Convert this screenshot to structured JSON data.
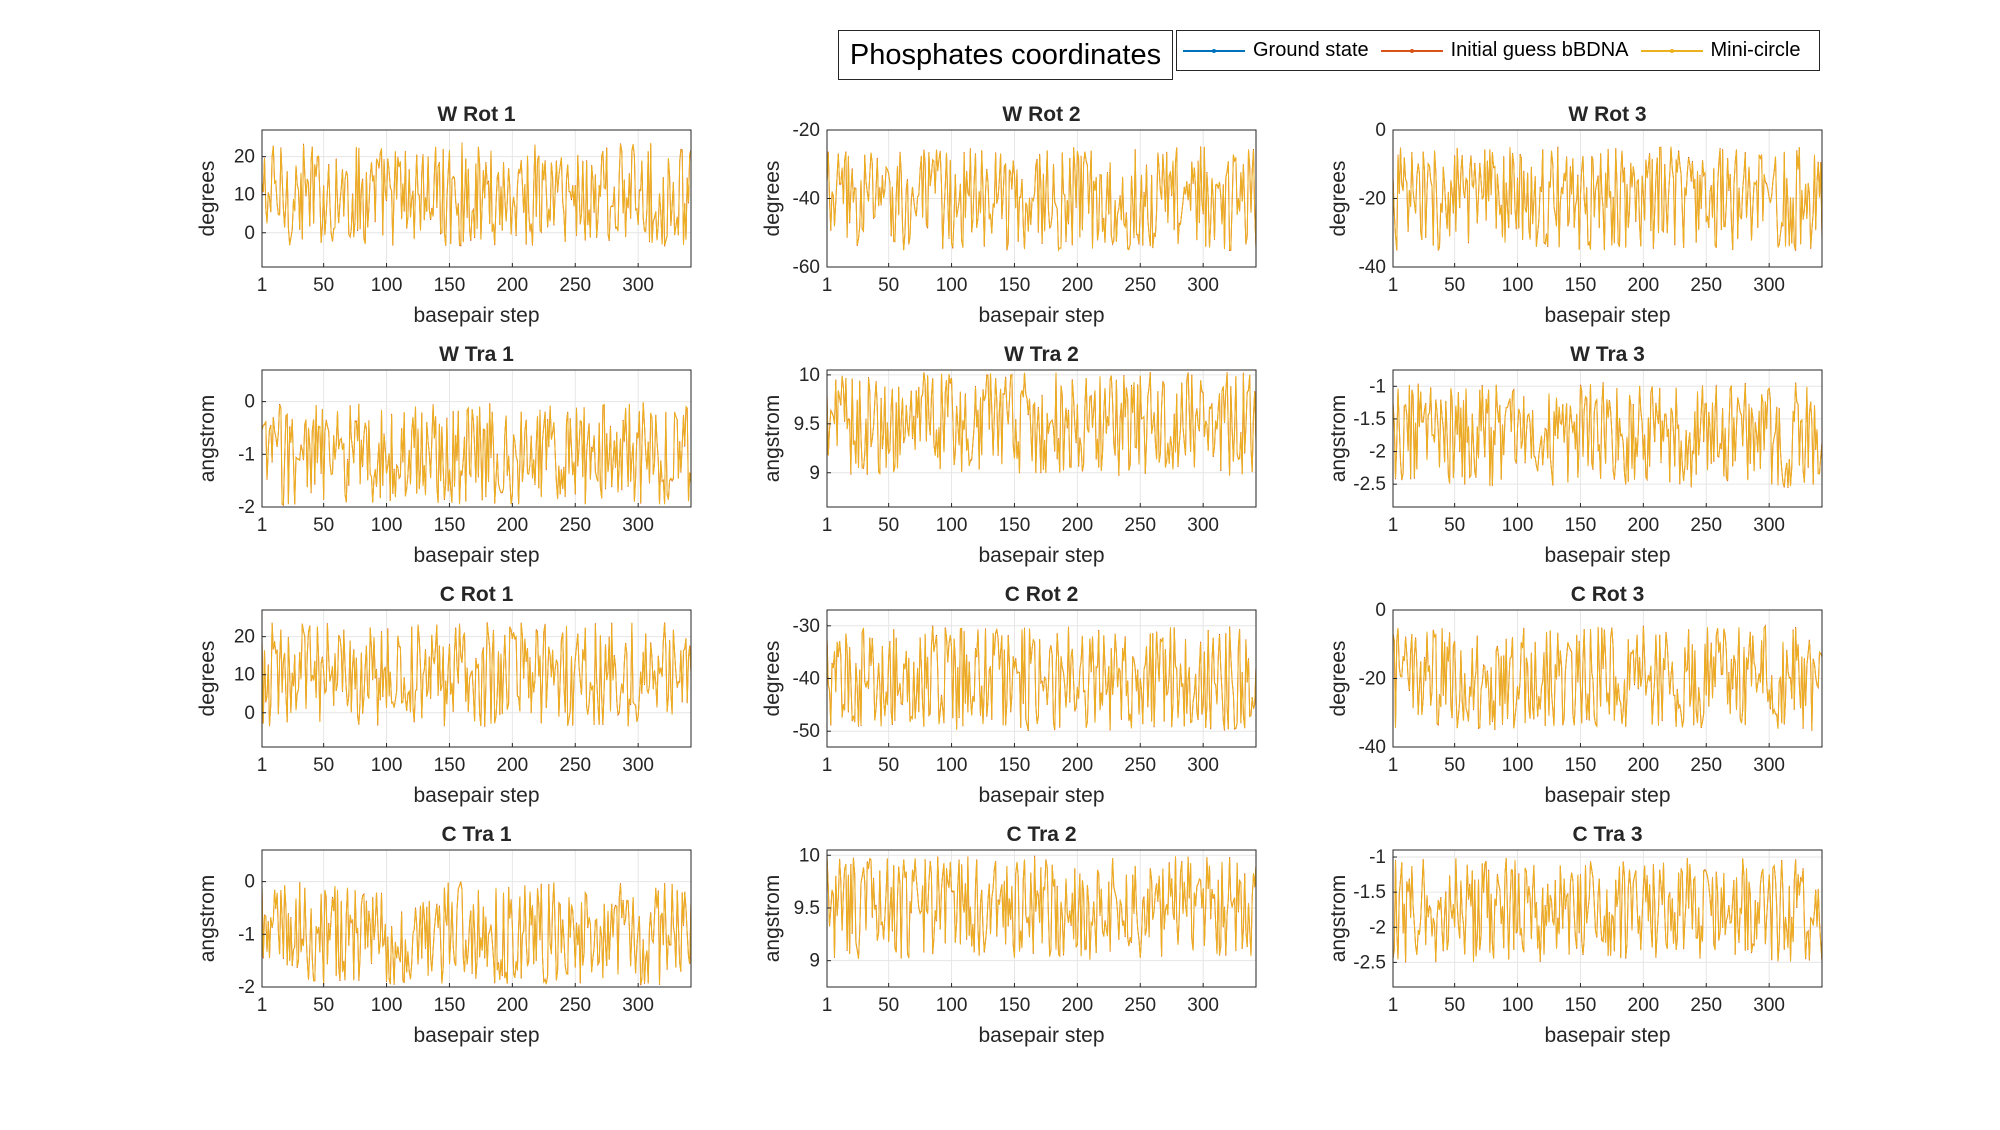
{
  "figure_title": "Phosphates coordinates",
  "legend": [
    {
      "label": "Ground state",
      "color": "#0072BD"
    },
    {
      "label": "Initial guess bBDNA",
      "color": "#D95319"
    },
    {
      "label": "Mini-circle",
      "color": "#EDB120"
    }
  ],
  "chart_data": [
    {
      "type": "line",
      "title": "W Rot 1",
      "xlabel": "basepair step",
      "ylabel": "degrees",
      "xlim": [
        1,
        342
      ],
      "xticks": [
        1,
        50,
        100,
        150,
        200,
        250,
        300
      ],
      "ylim": [
        -9,
        27
      ],
      "yticks": [
        0,
        10,
        20
      ],
      "series": [
        {
          "name": "Ground state",
          "values": []
        },
        {
          "name": "Initial guess bBDNA",
          "values": []
        },
        {
          "name": "Mini-circle",
          "values": []
        }
      ]
    },
    {
      "type": "line",
      "title": "W Rot 2",
      "xlabel": "basepair step",
      "ylabel": "degrees",
      "xlim": [
        1,
        342
      ],
      "xticks": [
        1,
        50,
        100,
        150,
        200,
        250,
        300
      ],
      "ylim": [
        -60,
        -20
      ],
      "yticks": [
        -60,
        -40,
        -20
      ],
      "series": [
        {
          "name": "Ground state",
          "values": []
        },
        {
          "name": "Initial guess bBDNA",
          "values": []
        },
        {
          "name": "Mini-circle",
          "values": []
        }
      ]
    },
    {
      "type": "line",
      "title": "W Rot 3",
      "xlabel": "basepair step",
      "ylabel": "degrees",
      "xlim": [
        1,
        342
      ],
      "xticks": [
        1,
        50,
        100,
        150,
        200,
        250,
        300
      ],
      "ylim": [
        -40,
        0
      ],
      "yticks": [
        -40,
        -20,
        0
      ],
      "series": [
        {
          "name": "Ground state",
          "values": []
        },
        {
          "name": "Initial guess bBDNA",
          "values": []
        },
        {
          "name": "Mini-circle",
          "values": []
        }
      ]
    },
    {
      "type": "line",
      "title": "W Tra 1",
      "xlabel": "basepair step",
      "ylabel": "angstrom",
      "xlim": [
        1,
        342
      ],
      "xticks": [
        1,
        50,
        100,
        150,
        200,
        250,
        300
      ],
      "ylim": [
        -2,
        0.6
      ],
      "yticks": [
        -2,
        -1,
        0
      ],
      "series": [
        {
          "name": "Ground state",
          "values": []
        },
        {
          "name": "Initial guess bBDNA",
          "values": []
        },
        {
          "name": "Mini-circle",
          "values": []
        }
      ]
    },
    {
      "type": "line",
      "title": "W Tra 2",
      "xlabel": "basepair step",
      "ylabel": "angstrom",
      "xlim": [
        1,
        342
      ],
      "xticks": [
        1,
        50,
        100,
        150,
        200,
        250,
        300
      ],
      "ylim": [
        8.65,
        10.05
      ],
      "yticks": [
        9,
        9.5,
        10
      ],
      "series": [
        {
          "name": "Ground state",
          "values": []
        },
        {
          "name": "Initial guess bBDNA",
          "values": []
        },
        {
          "name": "Mini-circle",
          "values": []
        }
      ]
    },
    {
      "type": "line",
      "title": "W Tra 3",
      "xlabel": "basepair step",
      "ylabel": "angstrom",
      "xlim": [
        1,
        342
      ],
      "xticks": [
        1,
        50,
        100,
        150,
        200,
        250,
        300
      ],
      "ylim": [
        -2.85,
        -0.75
      ],
      "yticks": [
        -2.5,
        -2,
        -1.5,
        -1
      ],
      "series": [
        {
          "name": "Ground state",
          "values": []
        },
        {
          "name": "Initial guess bBDNA",
          "values": []
        },
        {
          "name": "Mini-circle",
          "values": []
        }
      ]
    },
    {
      "type": "line",
      "title": "C Rot 1",
      "xlabel": "basepair step",
      "ylabel": "degrees",
      "xlim": [
        1,
        342
      ],
      "xticks": [
        1,
        50,
        100,
        150,
        200,
        250,
        300
      ],
      "ylim": [
        -9,
        27
      ],
      "yticks": [
        0,
        10,
        20
      ],
      "series": [
        {
          "name": "Ground state",
          "values": []
        },
        {
          "name": "Initial guess bBDNA",
          "values": []
        },
        {
          "name": "Mini-circle",
          "values": []
        }
      ]
    },
    {
      "type": "line",
      "title": "C Rot 2",
      "xlabel": "basepair step",
      "ylabel": "degrees",
      "xlim": [
        1,
        342
      ],
      "xticks": [
        1,
        50,
        100,
        150,
        200,
        250,
        300
      ],
      "ylim": [
        -53,
        -27
      ],
      "yticks": [
        -50,
        -40,
        -30
      ],
      "series": [
        {
          "name": "Ground state",
          "values": []
        },
        {
          "name": "Initial guess bBDNA",
          "values": []
        },
        {
          "name": "Mini-circle",
          "values": []
        }
      ]
    },
    {
      "type": "line",
      "title": "C Rot 3",
      "xlabel": "basepair step",
      "ylabel": "degrees",
      "xlim": [
        1,
        342
      ],
      "xticks": [
        1,
        50,
        100,
        150,
        200,
        250,
        300
      ],
      "ylim": [
        -40,
        0
      ],
      "yticks": [
        -40,
        -20,
        0
      ],
      "series": [
        {
          "name": "Ground state",
          "values": []
        },
        {
          "name": "Initial guess bBDNA",
          "values": []
        },
        {
          "name": "Mini-circle",
          "values": []
        }
      ]
    },
    {
      "type": "line",
      "title": "C Tra 1",
      "xlabel": "basepair step",
      "ylabel": "angstrom",
      "xlim": [
        1,
        342
      ],
      "xticks": [
        1,
        50,
        100,
        150,
        200,
        250,
        300
      ],
      "ylim": [
        -2,
        0.6
      ],
      "yticks": [
        -2,
        -1,
        0
      ],
      "series": [
        {
          "name": "Ground state",
          "values": []
        },
        {
          "name": "Initial guess bBDNA",
          "values": []
        },
        {
          "name": "Mini-circle",
          "values": []
        }
      ]
    },
    {
      "type": "line",
      "title": "C Tra 2",
      "xlabel": "basepair step",
      "ylabel": "angstrom",
      "xlim": [
        1,
        342
      ],
      "xticks": [
        1,
        50,
        100,
        150,
        200,
        250,
        300
      ],
      "ylim": [
        8.75,
        10.05
      ],
      "yticks": [
        9,
        9.5,
        10
      ],
      "series": [
        {
          "name": "Ground state",
          "values": []
        },
        {
          "name": "Initial guess bBDNA",
          "values": []
        },
        {
          "name": "Mini-circle",
          "values": []
        }
      ]
    },
    {
      "type": "line",
      "title": "C Tra 3",
      "xlabel": "basepair step",
      "ylabel": "angstrom",
      "xlim": [
        1,
        342
      ],
      "xticks": [
        1,
        50,
        100,
        150,
        200,
        250,
        300
      ],
      "ylim": [
        -2.85,
        -0.9
      ],
      "yticks": [
        -2.5,
        -2,
        -1.5,
        -1
      ],
      "series": [
        {
          "name": "Ground state",
          "values": []
        },
        {
          "name": "Initial guess bBDNA",
          "values": []
        },
        {
          "name": "Mini-circle",
          "values": []
        }
      ]
    }
  ]
}
